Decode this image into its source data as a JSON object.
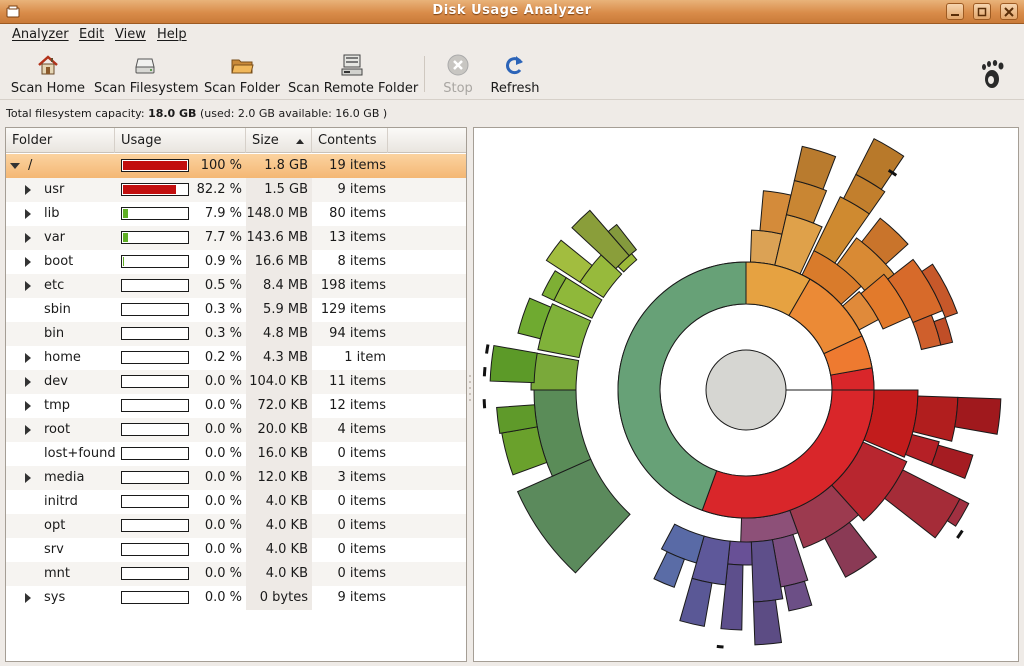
{
  "window": {
    "title": "Disk Usage Analyzer"
  },
  "menu": [
    "Analyzer",
    "Edit",
    "View",
    "Help"
  ],
  "toolbar": {
    "scan_home": "Scan Home",
    "scan_filesystem": "Scan Filesystem",
    "scan_folder": "Scan Folder",
    "scan_remote": "Scan Remote Folder",
    "stop": "Stop",
    "refresh": "Refresh"
  },
  "capacity": {
    "label": "Total filesystem capacity:",
    "total": "18.0 GB",
    "details": "(used: 2.0 GB available: 16.0 GB )"
  },
  "columns": {
    "folder": "Folder",
    "usage": "Usage",
    "size": "Size",
    "contents": "Contents"
  },
  "colors": {
    "usage_high": "#c20e0e",
    "usage_low": "#5fae24",
    "selection": "#f4b774",
    "titlebar": "#d98c4a"
  },
  "rows": [
    {
      "name": "/",
      "usage": 100,
      "percent": "100 %",
      "size": "1.8 GB",
      "contents": "19 items",
      "expander": "open"
    },
    {
      "name": "usr",
      "usage": 82.2,
      "percent": "82.2 %",
      "size": "1.5 GB",
      "contents": "9 items",
      "expander": "closed"
    },
    {
      "name": "lib",
      "usage": 7.9,
      "percent": "7.9 %",
      "size": "148.0 MB",
      "contents": "80 items",
      "expander": "closed"
    },
    {
      "name": "var",
      "usage": 7.7,
      "percent": "7.7 %",
      "size": "143.6 MB",
      "contents": "13 items",
      "expander": "closed"
    },
    {
      "name": "boot",
      "usage": 0.9,
      "percent": "0.9 %",
      "size": "16.6 MB",
      "contents": "8 items",
      "expander": "closed"
    },
    {
      "name": "etc",
      "usage": 0.5,
      "percent": "0.5 %",
      "size": "8.4 MB",
      "contents": "198 items",
      "expander": "closed"
    },
    {
      "name": "sbin",
      "usage": 0.3,
      "percent": "0.3 %",
      "size": "5.9 MB",
      "contents": "129 items",
      "expander": "none"
    },
    {
      "name": "bin",
      "usage": 0.3,
      "percent": "0.3 %",
      "size": "4.8 MB",
      "contents": "94 items",
      "expander": "none"
    },
    {
      "name": "home",
      "usage": 0.2,
      "percent": "0.2 %",
      "size": "4.3 MB",
      "contents": "1 item",
      "expander": "closed"
    },
    {
      "name": "dev",
      "usage": 0.0,
      "percent": "0.0 %",
      "size": "104.0 KB",
      "contents": "11 items",
      "expander": "closed"
    },
    {
      "name": "tmp",
      "usage": 0.0,
      "percent": "0.0 %",
      "size": "72.0 KB",
      "contents": "12 items",
      "expander": "closed"
    },
    {
      "name": "root",
      "usage": 0.0,
      "percent": "0.0 %",
      "size": "20.0 KB",
      "contents": "4 items",
      "expander": "closed"
    },
    {
      "name": "lost+found",
      "usage": 0.0,
      "percent": "0.0 %",
      "size": "16.0 KB",
      "contents": "0 items",
      "expander": "none"
    },
    {
      "name": "media",
      "usage": 0.0,
      "percent": "0.0 %",
      "size": "12.0 KB",
      "contents": "3 items",
      "expander": "closed"
    },
    {
      "name": "initrd",
      "usage": 0.0,
      "percent": "0.0 %",
      "size": "4.0 KB",
      "contents": "0 items",
      "expander": "none"
    },
    {
      "name": "opt",
      "usage": 0.0,
      "percent": "0.0 %",
      "size": "4.0 KB",
      "contents": "0 items",
      "expander": "none"
    },
    {
      "name": "srv",
      "usage": 0.0,
      "percent": "0.0 %",
      "size": "4.0 KB",
      "contents": "0 items",
      "expander": "none"
    },
    {
      "name": "mnt",
      "usage": 0.0,
      "percent": "0.0 %",
      "size": "4.0 KB",
      "contents": "0 items",
      "expander": "none"
    },
    {
      "name": "sys",
      "usage": 0.0,
      "percent": "0.0 %",
      "size": "0 bytes",
      "contents": "9 items",
      "expander": "closed"
    }
  ]
}
